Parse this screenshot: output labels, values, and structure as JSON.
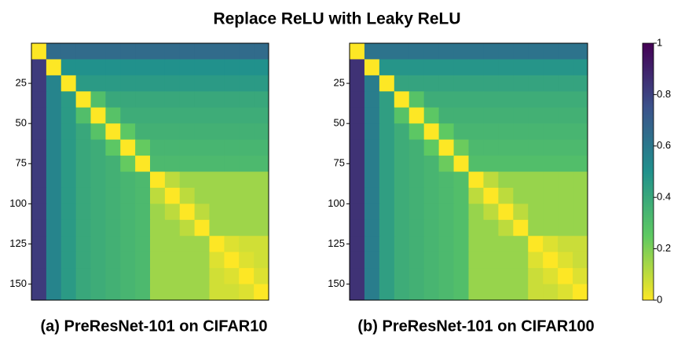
{
  "title": "Replace ReLU with Leaky ReLU",
  "colorbar": {
    "lim": [
      0,
      1
    ],
    "ticks": [
      0,
      0.2,
      0.4,
      0.6,
      0.8,
      1
    ],
    "colormap": "viridis_r"
  },
  "chart_data": [
    {
      "type": "heatmap",
      "title": "(a) PreResNet-101 on CIFAR10",
      "xlim": [
        0,
        160
      ],
      "ylim": [
        0,
        160
      ],
      "yticks": [
        25,
        50,
        75,
        100,
        125,
        150
      ],
      "values": [
        [
          0,
          0.65,
          0.65,
          0.65,
          0.65,
          0.65,
          0.65,
          0.65,
          0.65,
          0.65,
          0.65,
          0.65,
          0.65,
          0.65,
          0.65,
          0.65
        ],
        [
          0.82,
          0,
          0.5,
          0.5,
          0.5,
          0.5,
          0.5,
          0.5,
          0.5,
          0.5,
          0.5,
          0.5,
          0.5,
          0.5,
          0.5,
          0.5
        ],
        [
          0.82,
          0.55,
          0,
          0.46,
          0.46,
          0.46,
          0.46,
          0.46,
          0.46,
          0.46,
          0.46,
          0.46,
          0.46,
          0.46,
          0.46,
          0.46
        ],
        [
          0.82,
          0.55,
          0.46,
          0,
          0.3,
          0.4,
          0.4,
          0.4,
          0.4,
          0.4,
          0.4,
          0.4,
          0.4,
          0.4,
          0.4,
          0.4
        ],
        [
          0.82,
          0.55,
          0.46,
          0.3,
          0,
          0.28,
          0.38,
          0.38,
          0.38,
          0.38,
          0.38,
          0.38,
          0.38,
          0.38,
          0.38,
          0.38
        ],
        [
          0.82,
          0.55,
          0.46,
          0.4,
          0.28,
          0,
          0.26,
          0.36,
          0.36,
          0.36,
          0.36,
          0.36,
          0.36,
          0.36,
          0.36,
          0.36
        ],
        [
          0.82,
          0.55,
          0.46,
          0.4,
          0.38,
          0.26,
          0,
          0.24,
          0.34,
          0.34,
          0.34,
          0.34,
          0.34,
          0.34,
          0.34,
          0.34
        ],
        [
          0.82,
          0.55,
          0.46,
          0.4,
          0.38,
          0.36,
          0.24,
          0,
          0.32,
          0.32,
          0.32,
          0.32,
          0.32,
          0.32,
          0.32,
          0.32
        ],
        [
          0.82,
          0.55,
          0.46,
          0.4,
          0.38,
          0.36,
          0.34,
          0.32,
          0,
          0.1,
          0.15,
          0.15,
          0.15,
          0.15,
          0.15,
          0.15
        ],
        [
          0.82,
          0.55,
          0.46,
          0.4,
          0.38,
          0.36,
          0.34,
          0.32,
          0.1,
          0,
          0.1,
          0.15,
          0.15,
          0.15,
          0.15,
          0.15
        ],
        [
          0.82,
          0.55,
          0.46,
          0.4,
          0.38,
          0.36,
          0.34,
          0.32,
          0.15,
          0.1,
          0,
          0.1,
          0.15,
          0.15,
          0.15,
          0.15
        ],
        [
          0.82,
          0.55,
          0.46,
          0.4,
          0.38,
          0.36,
          0.34,
          0.32,
          0.15,
          0.15,
          0.1,
          0,
          0.15,
          0.15,
          0.15,
          0.15
        ],
        [
          0.82,
          0.55,
          0.46,
          0.4,
          0.38,
          0.36,
          0.34,
          0.32,
          0.15,
          0.15,
          0.15,
          0.15,
          0,
          0.05,
          0.07,
          0.07
        ],
        [
          0.82,
          0.55,
          0.46,
          0.4,
          0.38,
          0.36,
          0.34,
          0.32,
          0.15,
          0.15,
          0.15,
          0.15,
          0.05,
          0,
          0.05,
          0.07
        ],
        [
          0.82,
          0.55,
          0.46,
          0.4,
          0.38,
          0.36,
          0.34,
          0.32,
          0.15,
          0.15,
          0.15,
          0.15,
          0.07,
          0.05,
          0,
          0.05
        ],
        [
          0.82,
          0.55,
          0.46,
          0.4,
          0.38,
          0.36,
          0.34,
          0.32,
          0.15,
          0.15,
          0.15,
          0.15,
          0.07,
          0.07,
          0.05,
          0
        ]
      ]
    },
    {
      "type": "heatmap",
      "title": "(b) PreResNet-101 on CIFAR100",
      "xlim": [
        0,
        160
      ],
      "ylim": [
        0,
        160
      ],
      "yticks": [
        25,
        50,
        75,
        100,
        125,
        150
      ],
      "values": [
        [
          0,
          0.62,
          0.62,
          0.62,
          0.62,
          0.62,
          0.62,
          0.62,
          0.62,
          0.62,
          0.62,
          0.62,
          0.62,
          0.62,
          0.62,
          0.62
        ],
        [
          0.85,
          0,
          0.48,
          0.48,
          0.48,
          0.48,
          0.48,
          0.48,
          0.48,
          0.48,
          0.48,
          0.48,
          0.48,
          0.48,
          0.48,
          0.48
        ],
        [
          0.85,
          0.58,
          0,
          0.42,
          0.42,
          0.42,
          0.42,
          0.42,
          0.42,
          0.42,
          0.42,
          0.42,
          0.42,
          0.42,
          0.42,
          0.42
        ],
        [
          0.85,
          0.58,
          0.44,
          0,
          0.28,
          0.38,
          0.38,
          0.38,
          0.38,
          0.38,
          0.38,
          0.38,
          0.38,
          0.38,
          0.38,
          0.38
        ],
        [
          0.85,
          0.58,
          0.44,
          0.28,
          0,
          0.26,
          0.36,
          0.36,
          0.36,
          0.36,
          0.36,
          0.36,
          0.36,
          0.36,
          0.36,
          0.36
        ],
        [
          0.85,
          0.58,
          0.44,
          0.38,
          0.26,
          0,
          0.25,
          0.34,
          0.34,
          0.34,
          0.34,
          0.34,
          0.34,
          0.34,
          0.34,
          0.34
        ],
        [
          0.85,
          0.58,
          0.44,
          0.38,
          0.36,
          0.25,
          0,
          0.23,
          0.32,
          0.32,
          0.32,
          0.32,
          0.32,
          0.32,
          0.32,
          0.32
        ],
        [
          0.85,
          0.58,
          0.44,
          0.38,
          0.36,
          0.34,
          0.23,
          0,
          0.3,
          0.3,
          0.3,
          0.3,
          0.3,
          0.3,
          0.3,
          0.3
        ],
        [
          0.85,
          0.58,
          0.44,
          0.38,
          0.36,
          0.34,
          0.32,
          0.3,
          0,
          0.1,
          0.16,
          0.16,
          0.16,
          0.16,
          0.16,
          0.16
        ],
        [
          0.85,
          0.58,
          0.44,
          0.38,
          0.36,
          0.34,
          0.32,
          0.3,
          0.1,
          0,
          0.1,
          0.16,
          0.16,
          0.16,
          0.16,
          0.16
        ],
        [
          0.85,
          0.58,
          0.44,
          0.38,
          0.36,
          0.34,
          0.32,
          0.3,
          0.16,
          0.1,
          0,
          0.1,
          0.16,
          0.16,
          0.16,
          0.16
        ],
        [
          0.85,
          0.58,
          0.44,
          0.38,
          0.36,
          0.34,
          0.32,
          0.3,
          0.16,
          0.16,
          0.1,
          0,
          0.16,
          0.16,
          0.16,
          0.16
        ],
        [
          0.85,
          0.58,
          0.44,
          0.38,
          0.36,
          0.34,
          0.32,
          0.3,
          0.16,
          0.16,
          0.16,
          0.16,
          0,
          0.05,
          0.08,
          0.08
        ],
        [
          0.85,
          0.58,
          0.44,
          0.38,
          0.36,
          0.34,
          0.32,
          0.3,
          0.16,
          0.16,
          0.16,
          0.16,
          0.05,
          0,
          0.05,
          0.08
        ],
        [
          0.85,
          0.58,
          0.44,
          0.38,
          0.36,
          0.34,
          0.32,
          0.3,
          0.16,
          0.16,
          0.16,
          0.16,
          0.08,
          0.05,
          0,
          0.05
        ],
        [
          0.85,
          0.58,
          0.44,
          0.38,
          0.36,
          0.34,
          0.32,
          0.3,
          0.16,
          0.16,
          0.16,
          0.16,
          0.08,
          0.08,
          0.05,
          0
        ]
      ]
    }
  ]
}
